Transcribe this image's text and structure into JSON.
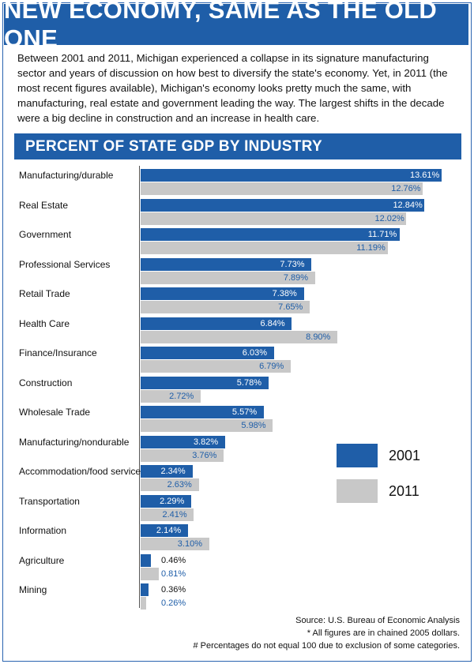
{
  "header": {
    "title": "NEW ECONOMY, SAME AS THE OLD ONE",
    "intro": "Between 2001 and 2011, Michigan experienced a collapse in its signature manufacturing sector and years of discussion on how best to diversify the state's economy. Yet, in 2011 (the most recent figures available), Michigan's economy looks pretty much the same, with manufacturing, real estate and government leading the way. The largest shifts in the decade were a big decline in construction and an increase in health care."
  },
  "chart_data": {
    "type": "bar",
    "orientation": "horizontal",
    "title": "PERCENT OF STATE GDP BY INDUSTRY",
    "categories": [
      "Manufacturing/durable",
      "Real Estate",
      "Government",
      "Professional Services",
      "Retail Trade",
      "Health Care",
      "Finance/Insurance",
      "Construction",
      "Wholesale Trade",
      "Manufacturing/nondurable",
      "Accommodation/food service",
      "Transportation",
      "Information",
      "Agriculture",
      "Mining"
    ],
    "series": [
      {
        "name": "2001",
        "color": "#1f5ea8",
        "values": [
          13.61,
          12.84,
          11.71,
          7.73,
          7.38,
          6.84,
          6.03,
          5.78,
          5.57,
          3.82,
          2.34,
          2.29,
          2.14,
          0.46,
          0.36
        ],
        "labels": [
          "13.61%",
          "12.84%",
          "11.71%",
          "7.73%",
          "7.38%",
          "6.84%",
          "6.03%",
          "5.78%",
          "5.57%",
          "3.82%",
          "2.34%",
          "2.29%",
          "2.14%",
          "0.46%",
          "0.36%"
        ]
      },
      {
        "name": "2011",
        "color": "#c8c8c8",
        "values": [
          12.76,
          12.02,
          11.19,
          7.89,
          7.65,
          8.9,
          6.79,
          2.72,
          5.98,
          3.76,
          2.63,
          2.41,
          3.1,
          0.81,
          0.26
        ],
        "labels": [
          "12.76%",
          "12.02%",
          "11.19%",
          "7.89%",
          "7.65%",
          "8.90%",
          "6.79%",
          "2.72%",
          "5.98%",
          "3.76%",
          "2.63%",
          "2.41%",
          "3.10%",
          "0.81%",
          "0.26%"
        ]
      }
    ],
    "xlim": [
      0,
      13.61
    ],
    "grid": false,
    "legend_position": "right"
  },
  "footer": {
    "source": "Source: U.S. Bureau of Economic Analysis",
    "note1": "* All figures are in chained 2005 dollars.",
    "note2": "# Percentages do not equal 100 due to exclusion of some categories."
  }
}
